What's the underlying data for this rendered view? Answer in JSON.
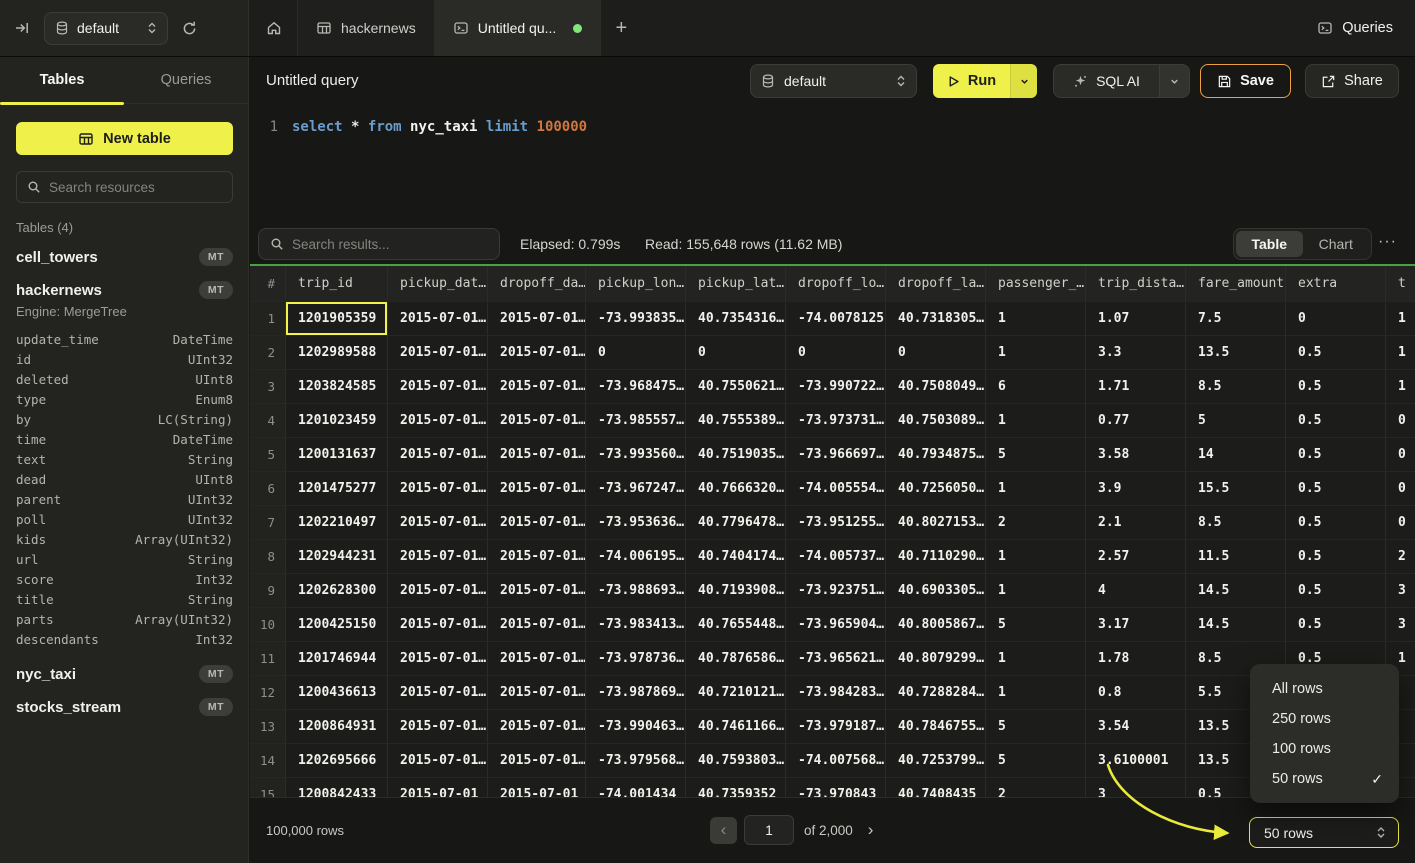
{
  "topbar": {
    "db_selector": {
      "value": "default"
    },
    "tabs": [
      {
        "label": "",
        "icon": "home"
      },
      {
        "label": "hackernews",
        "icon": "table"
      },
      {
        "label": "Untitled qu...",
        "icon": "terminal",
        "modified": true
      }
    ],
    "new_tab_label": "+",
    "queries_label": "Queries"
  },
  "sidebar": {
    "tabs": {
      "tables": "Tables",
      "queries": "Queries"
    },
    "new_table_label": "New table",
    "search_placeholder": "Search resources",
    "section_label": "Tables (4)",
    "tables": [
      {
        "name": "cell_towers",
        "badge": "MT"
      },
      {
        "name": "hackernews",
        "badge": "MT",
        "engine": "Engine: MergeTree",
        "columns": [
          {
            "name": "update_time",
            "type": "DateTime"
          },
          {
            "name": "id",
            "type": "UInt32"
          },
          {
            "name": "deleted",
            "type": "UInt8"
          },
          {
            "name": "type",
            "type": "Enum8"
          },
          {
            "name": "by",
            "type": "LC(String)"
          },
          {
            "name": "time",
            "type": "DateTime"
          },
          {
            "name": "text",
            "type": "String"
          },
          {
            "name": "dead",
            "type": "UInt8"
          },
          {
            "name": "parent",
            "type": "UInt32"
          },
          {
            "name": "poll",
            "type": "UInt32"
          },
          {
            "name": "kids",
            "type": "Array(UInt32)"
          },
          {
            "name": "url",
            "type": "String"
          },
          {
            "name": "score",
            "type": "Int32"
          },
          {
            "name": "title",
            "type": "String"
          },
          {
            "name": "parts",
            "type": "Array(UInt32)"
          },
          {
            "name": "descendants",
            "type": "Int32"
          }
        ]
      },
      {
        "name": "nyc_taxi",
        "badge": "MT"
      },
      {
        "name": "stocks_stream",
        "badge": "MT"
      }
    ]
  },
  "query": {
    "title": "Untitled query",
    "db_selector": "default",
    "run_label": "Run",
    "sql_ai_label": "SQL AI",
    "save_label": "Save",
    "share_label": "Share",
    "editor": {
      "line_number": "1",
      "tokens": [
        {
          "t": "select",
          "c": "kw"
        },
        {
          "t": "*",
          "c": "op"
        },
        {
          "t": "from",
          "c": "kw"
        },
        {
          "t": "nyc_taxi",
          "c": "id"
        },
        {
          "t": "limit",
          "c": "kw"
        },
        {
          "t": "100000",
          "c": "num"
        }
      ]
    }
  },
  "results": {
    "search_placeholder": "Search results...",
    "elapsed": "Elapsed: 0.799s",
    "read": "Read: 155,648 rows (11.62 MB)",
    "view_toggle": {
      "table": "Table",
      "chart": "Chart"
    },
    "more_label": "···",
    "table": {
      "headers": [
        "#",
        "trip_id",
        "pickup_dat…",
        "dropoff_da…",
        "pickup_lon…",
        "pickup_lat…",
        "dropoff_lo…",
        "dropoff_la…",
        "passenger_…",
        "trip_dista…",
        "fare_amount",
        "extra",
        "t"
      ],
      "selected_cell": {
        "row": 0,
        "col": 1
      },
      "rows": [
        [
          "1",
          "1201905359",
          "2015-07-01…",
          "2015-07-01…",
          "-73.993835…",
          "40.7354316…",
          "-74.0078125",
          "40.7318305…",
          "1",
          "1.07",
          "7.5",
          "0",
          "1"
        ],
        [
          "2",
          "1202989588",
          "2015-07-01…",
          "2015-07-01…",
          "0",
          "0",
          "0",
          "0",
          "1",
          "3.3",
          "13.5",
          "0.5",
          "1"
        ],
        [
          "3",
          "1203824585",
          "2015-07-01…",
          "2015-07-01…",
          "-73.968475…",
          "40.7550621…",
          "-73.990722…",
          "40.7508049…",
          "6",
          "1.71",
          "8.5",
          "0.5",
          "1"
        ],
        [
          "4",
          "1201023459",
          "2015-07-01…",
          "2015-07-01…",
          "-73.985557…",
          "40.7555389…",
          "-73.973731…",
          "40.7503089…",
          "1",
          "0.77",
          "5",
          "0.5",
          "0"
        ],
        [
          "5",
          "1200131637",
          "2015-07-01…",
          "2015-07-01…",
          "-73.993560…",
          "40.7519035…",
          "-73.966697…",
          "40.7934875…",
          "5",
          "3.58",
          "14",
          "0.5",
          "0"
        ],
        [
          "6",
          "1201475277",
          "2015-07-01…",
          "2015-07-01…",
          "-73.967247…",
          "40.7666320…",
          "-74.005554…",
          "40.7256050…",
          "1",
          "3.9",
          "15.5",
          "0.5",
          "0"
        ],
        [
          "7",
          "1202210497",
          "2015-07-01…",
          "2015-07-01…",
          "-73.953636…",
          "40.7796478…",
          "-73.951255…",
          "40.8027153…",
          "2",
          "2.1",
          "8.5",
          "0.5",
          "0"
        ],
        [
          "8",
          "1202944231",
          "2015-07-01…",
          "2015-07-01…",
          "-74.006195…",
          "40.7404174…",
          "-74.005737…",
          "40.7110290…",
          "1",
          "2.57",
          "11.5",
          "0.5",
          "2"
        ],
        [
          "9",
          "1202628300",
          "2015-07-01…",
          "2015-07-01…",
          "-73.988693…",
          "40.7193908…",
          "-73.923751…",
          "40.6903305…",
          "1",
          "4",
          "14.5",
          "0.5",
          "3"
        ],
        [
          "10",
          "1200425150",
          "2015-07-01…",
          "2015-07-01…",
          "-73.983413…",
          "40.7655448…",
          "-73.965904…",
          "40.8005867…",
          "5",
          "3.17",
          "14.5",
          "0.5",
          "3"
        ],
        [
          "11",
          "1201746944",
          "2015-07-01…",
          "2015-07-01…",
          "-73.978736…",
          "40.7876586…",
          "-73.965621…",
          "40.8079299…",
          "1",
          "1.78",
          "8.5",
          "0.5",
          "1"
        ],
        [
          "12",
          "1200436613",
          "2015-07-01…",
          "2015-07-01…",
          "-73.987869…",
          "40.7210121…",
          "-73.984283…",
          "40.7288284…",
          "1",
          "0.8",
          "5.5",
          "",
          ""
        ],
        [
          "13",
          "1200864931",
          "2015-07-01…",
          "2015-07-01…",
          "-73.990463…",
          "40.7461166…",
          "-73.979187…",
          "40.7846755…",
          "5",
          "3.54",
          "13.5",
          "",
          ""
        ],
        [
          "14",
          "1202695666",
          "2015-07-01…",
          "2015-07-01…",
          "-73.979568…",
          "40.7593803…",
          "-74.007568…",
          "40.7253799…",
          "5",
          "3.6100001",
          "13.5",
          "",
          ""
        ],
        [
          "15",
          "1200842433",
          "2015-07-01",
          "2015-07-01",
          "-74.001434",
          "40.7359352",
          "-73.970843",
          "40.7408435",
          "2",
          "3",
          "0.5",
          "",
          ""
        ]
      ]
    },
    "footer": {
      "total_rows": "100,000 rows",
      "prev": "‹",
      "page_value": "1",
      "page_of": "of 2,000",
      "next": "›"
    },
    "page_size": {
      "value": "50 rows",
      "options": [
        "All rows",
        "250 rows",
        "100 rows",
        "50 rows"
      ],
      "selected_index": 3,
      "check_glyph": "✓"
    }
  },
  "colors": {
    "accent_yellow": "#eff04a",
    "save_border": "#eda13e",
    "green_dot": "#84e57c",
    "grid_top_border": "#47a33d",
    "annotation_arrow": "#e9ea3c"
  }
}
